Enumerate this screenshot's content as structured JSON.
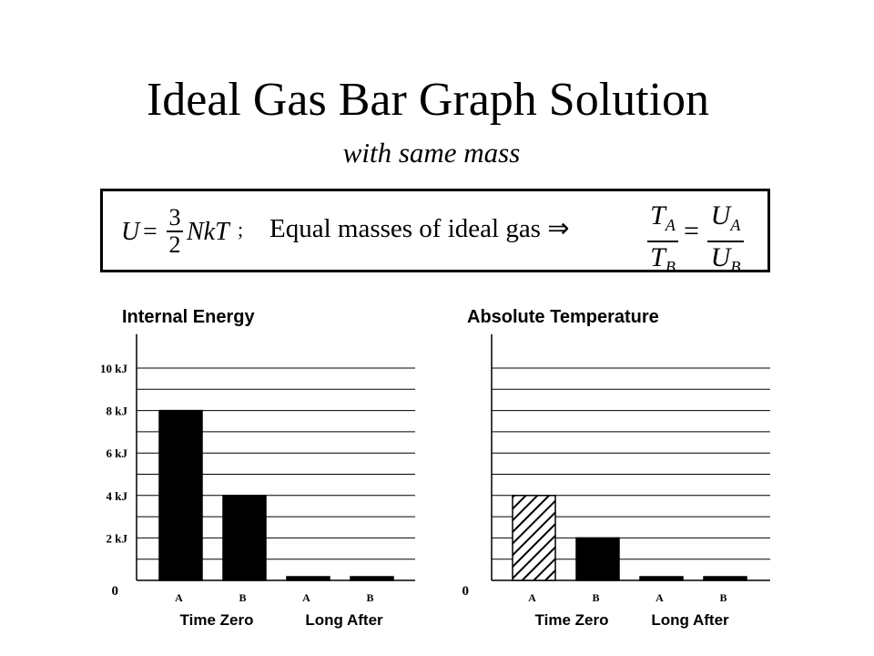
{
  "title": "Ideal Gas Bar Graph Solution",
  "subtitle": "with same mass",
  "formula": {
    "left_lhs": "U",
    "left_num": "3",
    "left_den": "2",
    "left_rhs": "NkT",
    "left_sep": ";",
    "text": "Equal masses of ideal gas ⇒",
    "ratio_lhs_num": "T",
    "ratio_lhs_num_sub": "A",
    "ratio_lhs_den": "T",
    "ratio_lhs_den_sub": "B",
    "ratio_rhs_num": "U",
    "ratio_rhs_num_sub": "A",
    "ratio_rhs_den": "U",
    "ratio_rhs_den_sub": "B"
  },
  "chart_data": [
    {
      "type": "bar",
      "title": "Internal Energy",
      "categories": [
        "A",
        "B",
        "A",
        "B"
      ],
      "groups": [
        "Time Zero",
        "Long After"
      ],
      "values": [
        8,
        4,
        0,
        0
      ],
      "unit": "kJ",
      "ylim": [
        0,
        11
      ],
      "ytick_labels": [
        {
          "value": 0,
          "label": "0"
        },
        {
          "value": 2,
          "label": "2 kJ"
        },
        {
          "value": 4,
          "label": "4 kJ"
        },
        {
          "value": 6,
          "label": "6 kJ"
        },
        {
          "value": 8,
          "label": "8 kJ"
        },
        {
          "value": 10,
          "label": "10 kJ"
        }
      ],
      "gridlines_step": 1,
      "grid": true,
      "bar_fills": [
        "solid",
        "solid",
        "solid",
        "solid"
      ]
    },
    {
      "type": "bar",
      "title": "Absolute Temperature",
      "categories": [
        "A",
        "B",
        "A",
        "B"
      ],
      "groups": [
        "Time Zero",
        "Long After"
      ],
      "values": [
        4,
        2,
        0,
        0
      ],
      "ylim": [
        0,
        11
      ],
      "ytick_labels": [
        {
          "value": 0,
          "label": "0"
        }
      ],
      "gridlines_step": 1,
      "grid": true,
      "bar_fills": [
        "hatched",
        "solid",
        "solid",
        "solid"
      ]
    }
  ],
  "colors": {
    "bar": "#000000",
    "grid": "#000000",
    "background": "#ffffff"
  }
}
